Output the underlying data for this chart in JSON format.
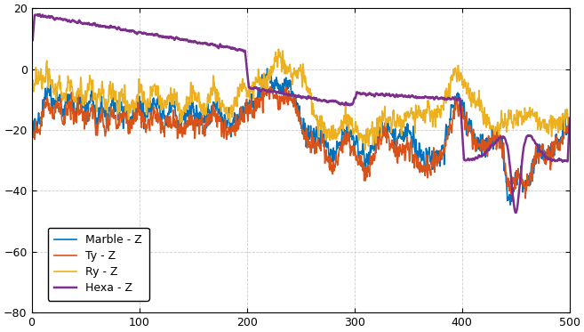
{
  "title": "",
  "xlabel": "",
  "ylabel": "",
  "background_color": "#ffffff",
  "figure_bg": "#ffffff",
  "axes_bg": "#ffffff",
  "grid_color": "#cccccc",
  "text_color": "#000000",
  "spine_color": "#000000",
  "line_colors": {
    "marble": "#0072bd",
    "ty": "#d95319",
    "ry": "#edb120",
    "hexa": "#7e2f8e"
  },
  "legend_labels": [
    "Marble - Z",
    "Ty - Z",
    "Ry - Z",
    "Hexa - Z"
  ],
  "xlim": [
    0,
    500
  ],
  "ylim": [
    -80,
    20
  ],
  "yticks": [
    -80,
    -60,
    -40,
    -20,
    0,
    20
  ],
  "xticks": [
    0,
    100,
    200,
    300,
    400,
    500
  ],
  "grid_linestyle": "--",
  "line_width": 1.2
}
